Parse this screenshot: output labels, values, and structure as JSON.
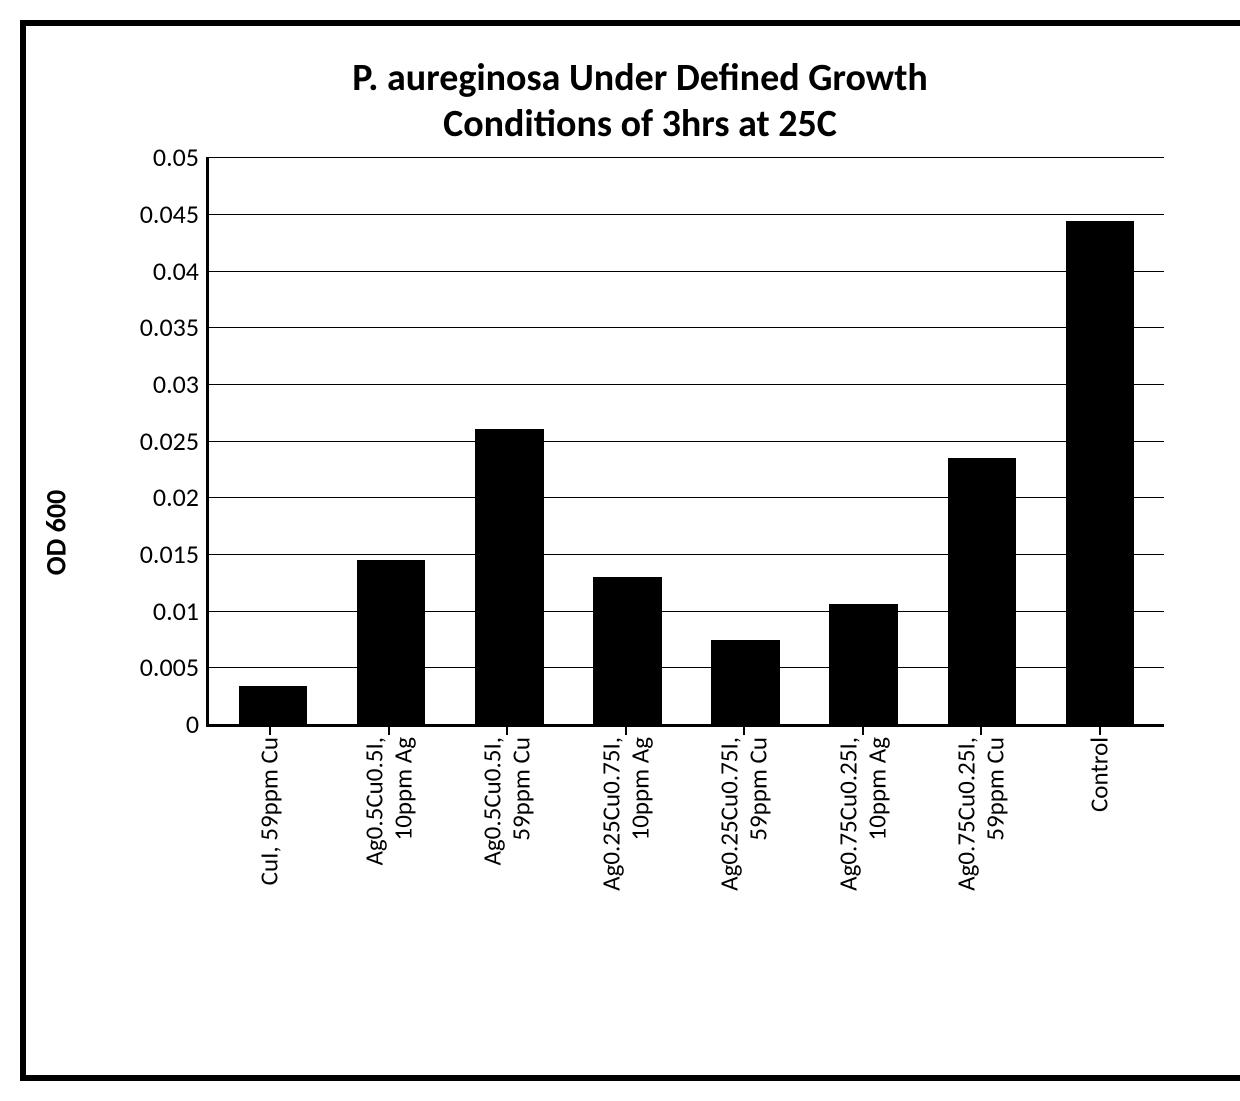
{
  "chart": {
    "type": "bar",
    "title_line1": "P. aureginosa Under Defined Growth",
    "title_line2": "Conditions of 3hrs at 25C",
    "title_fontsize": 38,
    "ylabel": "OD 600",
    "ylabel_fontsize": 28,
    "tick_fontsize": 26,
    "xlabel_fontsize": 25,
    "bar_color": "#000000",
    "grid_color": "#000000",
    "axis_color": "#000000",
    "background_color": "#ffffff",
    "ylim": [
      0,
      0.05
    ],
    "yticks": [
      0,
      0.005,
      0.01,
      0.015,
      0.02,
      0.025,
      0.03,
      0.035,
      0.04,
      0.045,
      0.05
    ],
    "ytick_labels": [
      "0",
      "0.005",
      "0.01",
      "0.015",
      "0.02",
      "0.025",
      "0.03",
      "0.035",
      "0.04",
      "0.045",
      "0.05"
    ],
    "categories": [
      "CuI, 59ppm Cu",
      "Ag0.5Cu0.5I,\n10ppm Ag",
      "Ag0.5Cu0.5I,\n59ppm Cu",
      "Ag0.25Cu0.75I,\n10ppm Ag",
      "Ag0.25Cu0.75I,\n59ppm Cu",
      "Ag0.75Cu0.25I,\n10ppm Ag",
      "Ag0.75Cu0.25I,\n59ppm Cu",
      "Control"
    ],
    "values": [
      0.0034,
      0.0145,
      0.026,
      0.013,
      0.0074,
      0.0106,
      0.0235,
      0.0444
    ],
    "bar_width": 0.58
  }
}
